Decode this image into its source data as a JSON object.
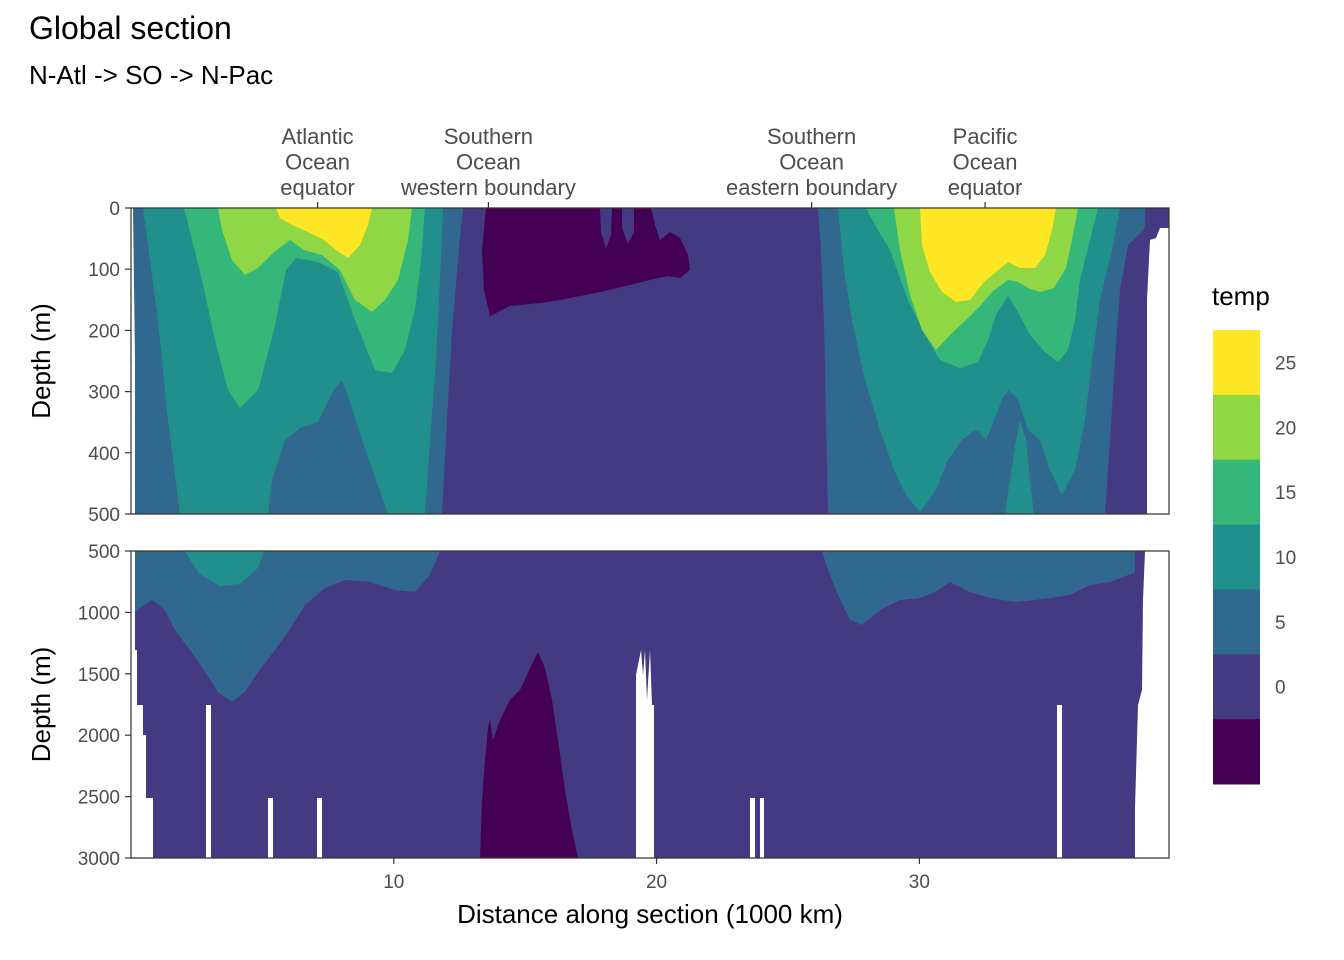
{
  "title": "Global section",
  "subtitle": "N-Atl -> SO -> N-Pac",
  "chart_data": {
    "type": "heatmap",
    "subtype": "filled contour section",
    "xlabel": "Distance along section (1000 km)",
    "ylabel": "Depth (m)",
    "xlim": [
      0,
      39.5
    ],
    "x_ticks": [
      10,
      20,
      30
    ],
    "panels": [
      {
        "name": "upper",
        "ylim": [
          0,
          500
        ],
        "y_ticks": [
          0,
          100,
          200,
          300,
          400,
          500
        ]
      },
      {
        "name": "lower",
        "ylim": [
          500,
          3000
        ],
        "y_ticks": [
          500,
          1000,
          1500,
          2000,
          2500,
          3000
        ]
      }
    ],
    "annotations": [
      {
        "x": 7.1,
        "lines": [
          "Atlantic",
          "Ocean",
          "equator"
        ]
      },
      {
        "x": 13.6,
        "lines": [
          "Southern",
          "Ocean",
          "western boundary"
        ]
      },
      {
        "x": 25.9,
        "lines": [
          "Southern",
          "Ocean",
          "eastern boundary"
        ]
      },
      {
        "x": 32.5,
        "lines": [
          "Pacific",
          "Ocean",
          "equator"
        ]
      }
    ],
    "legend": {
      "title": "temp",
      "position": "right",
      "breaks": [
        25,
        20,
        15,
        10,
        5,
        0
      ],
      "bins": [
        {
          "range": [
            25,
            30
          ],
          "color": "#FDE725"
        },
        {
          "range": [
            20,
            25
          ],
          "color": "#8FD744"
        },
        {
          "range": [
            15,
            20
          ],
          "color": "#35B779"
        },
        {
          "range": [
            10,
            15
          ],
          "color": "#21908C"
        },
        {
          "range": [
            5,
            10
          ],
          "color": "#31688E"
        },
        {
          "range": [
            0,
            5
          ],
          "color": "#443A83"
        },
        {
          "range": [
            -5,
            0
          ],
          "color": "#440154"
        }
      ]
    }
  }
}
